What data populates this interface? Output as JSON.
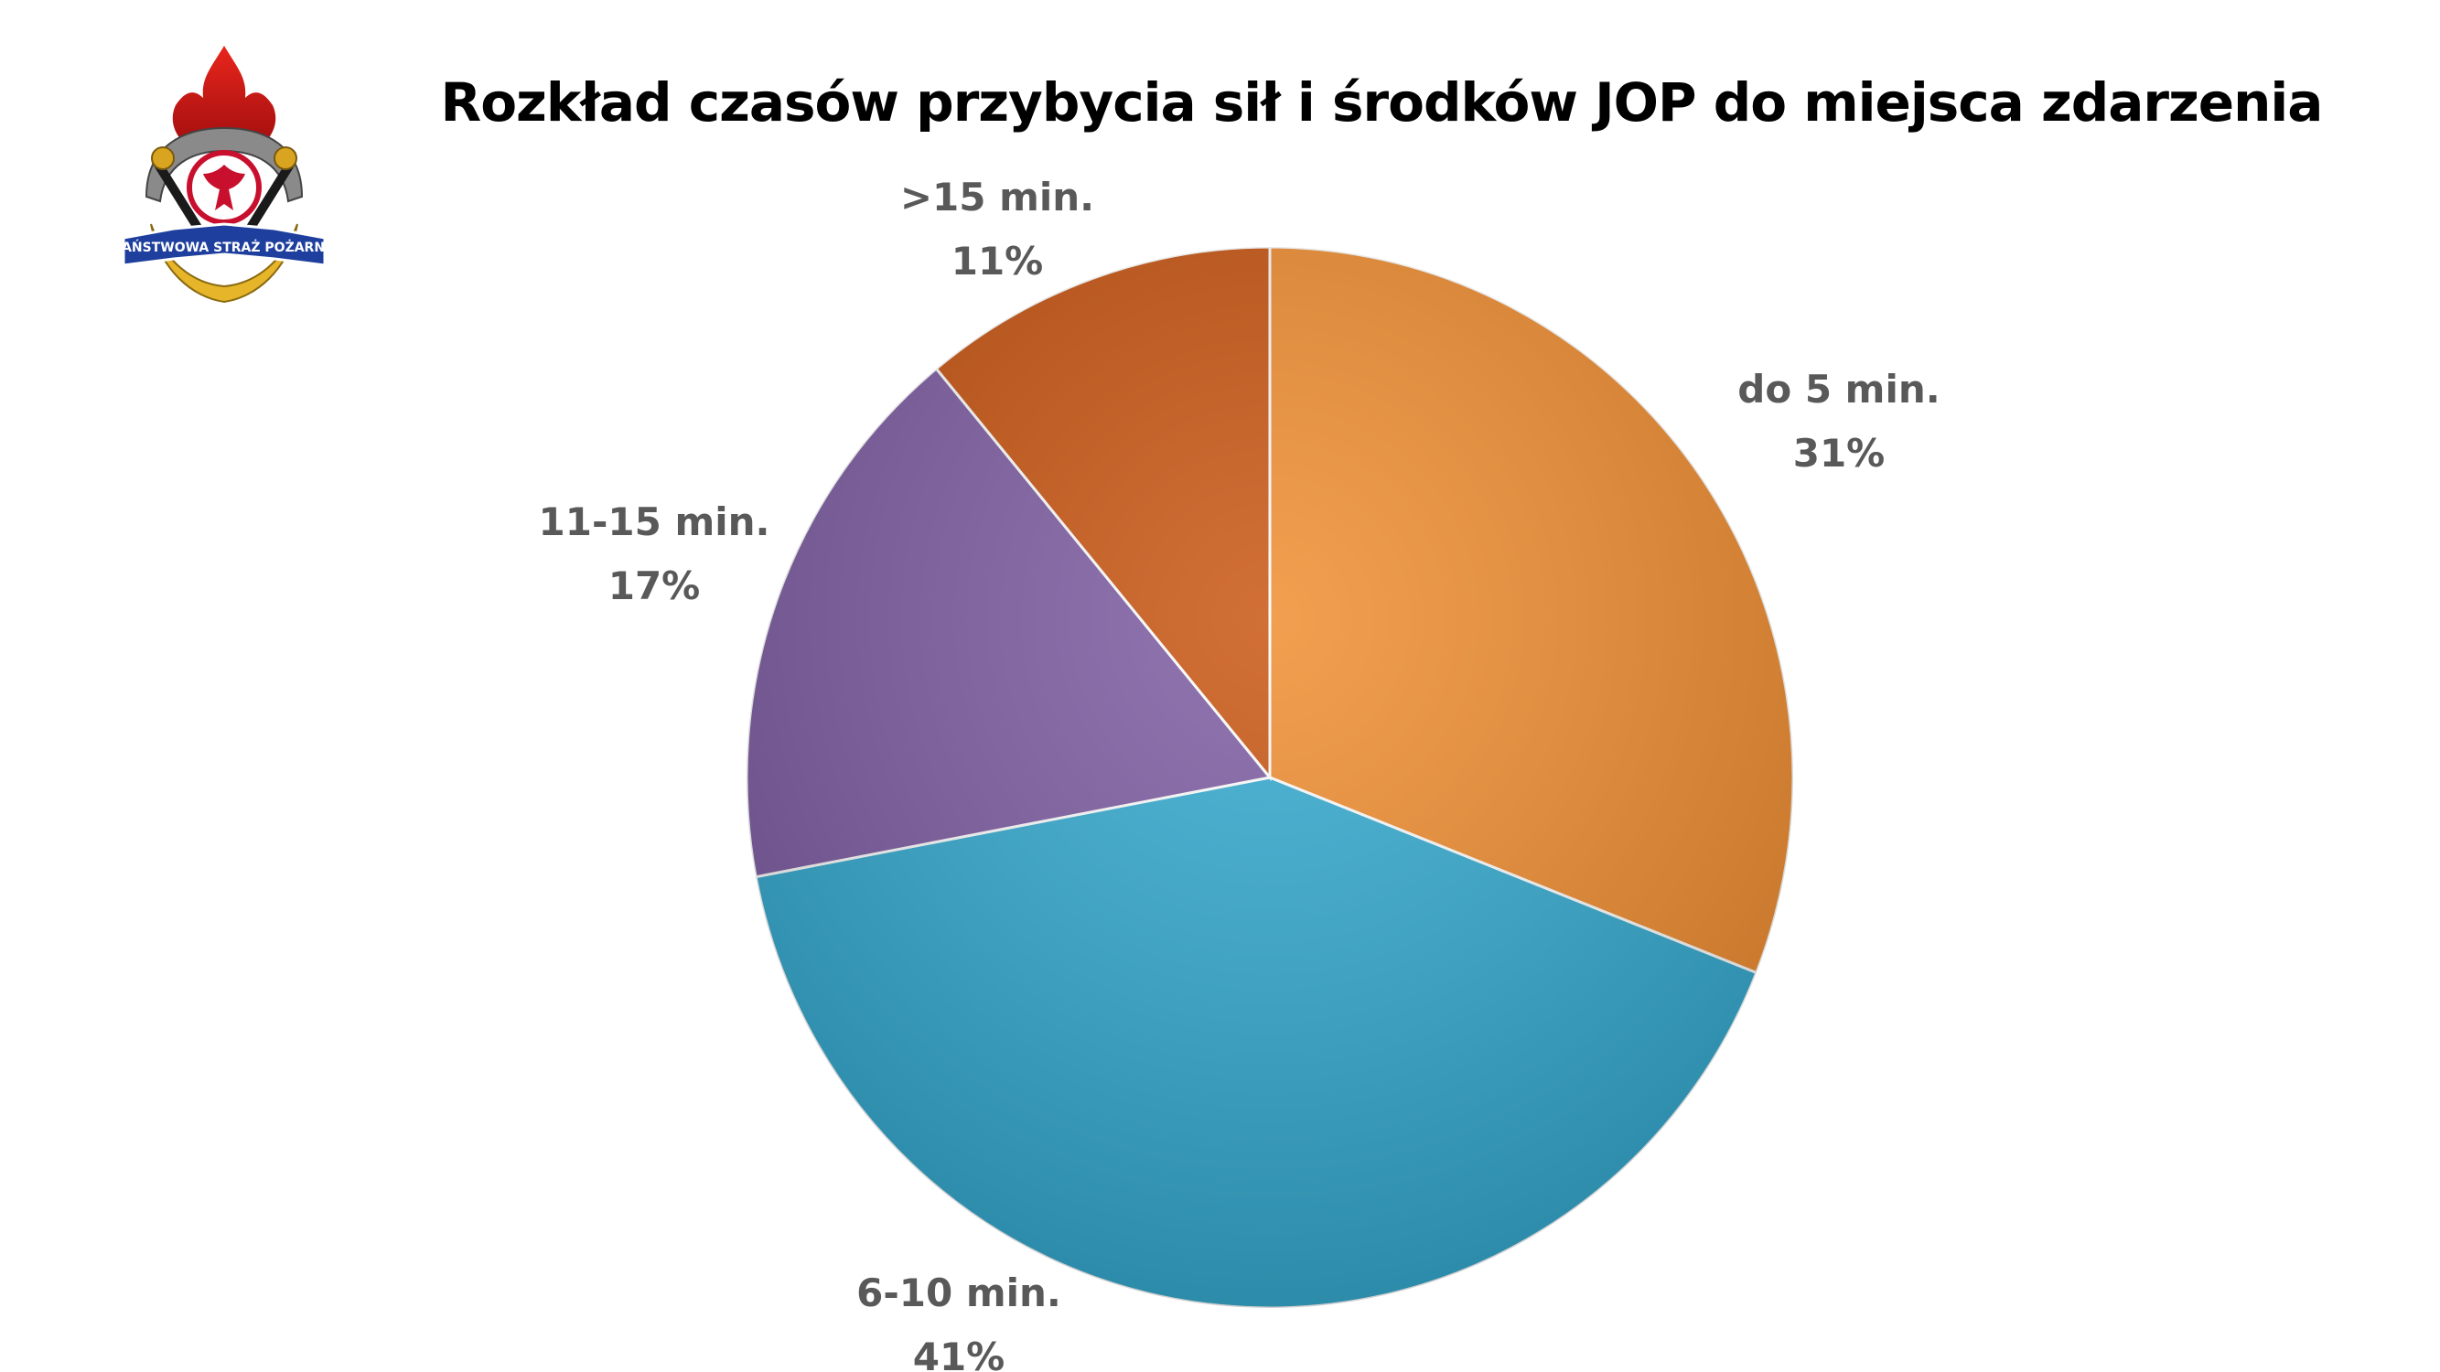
{
  "chart_data": {
    "type": "pie",
    "title": "Rozkład czasów przybycia sił i środków JOP do miejsca zdarzenia",
    "categories": [
      "do 5 min.",
      "6-10 min.",
      "11-15 min.",
      ">15 min."
    ],
    "values": [
      31,
      41,
      17,
      11
    ],
    "value_labels": [
      "31%",
      "41%",
      "17%",
      "11%"
    ],
    "colors": [
      "#F08A2A",
      "#2FA8CF",
      "#7A58A0",
      "#C7500A"
    ],
    "start_angle": "12 o'clock",
    "direction": "clockwise",
    "legend": "none",
    "data_labels": "outside"
  },
  "logo": {
    "name": "Państwowa Straż Pożarna emblem",
    "text": "PAŃSTWOWA STRAŻ POŻARNA"
  }
}
